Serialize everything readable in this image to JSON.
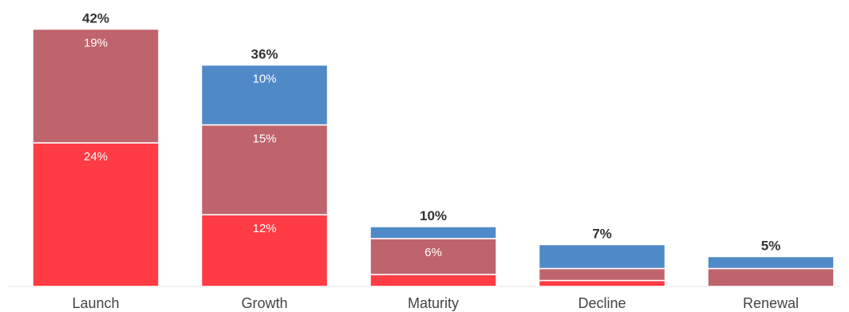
{
  "chart_data": {
    "type": "bar",
    "stacked": true,
    "categories": [
      "Launch",
      "Growth",
      "Maturity",
      "Decline",
      "Renewal"
    ],
    "series": [
      {
        "values": [
          24,
          12,
          2,
          1,
          0
        ],
        "color": "#ff3b44",
        "labels": [
          "24%",
          "12%",
          "",
          "",
          ""
        ]
      },
      {
        "values": [
          19,
          15,
          6,
          2,
          3
        ],
        "color": "#bf646c",
        "labels": [
          "19%",
          "15%",
          "6%",
          "",
          ""
        ]
      },
      {
        "values": [
          0,
          10,
          2,
          4,
          2
        ],
        "color": "#4f89c8",
        "labels": [
          "",
          "10%",
          "",
          "",
          ""
        ]
      }
    ],
    "totals": [
      "42%",
      "36%",
      "10%",
      "7%",
      "5%"
    ],
    "ylim": [
      0,
      42
    ],
    "grid": false,
    "legend": "none",
    "xlabel": "",
    "ylabel": ""
  }
}
